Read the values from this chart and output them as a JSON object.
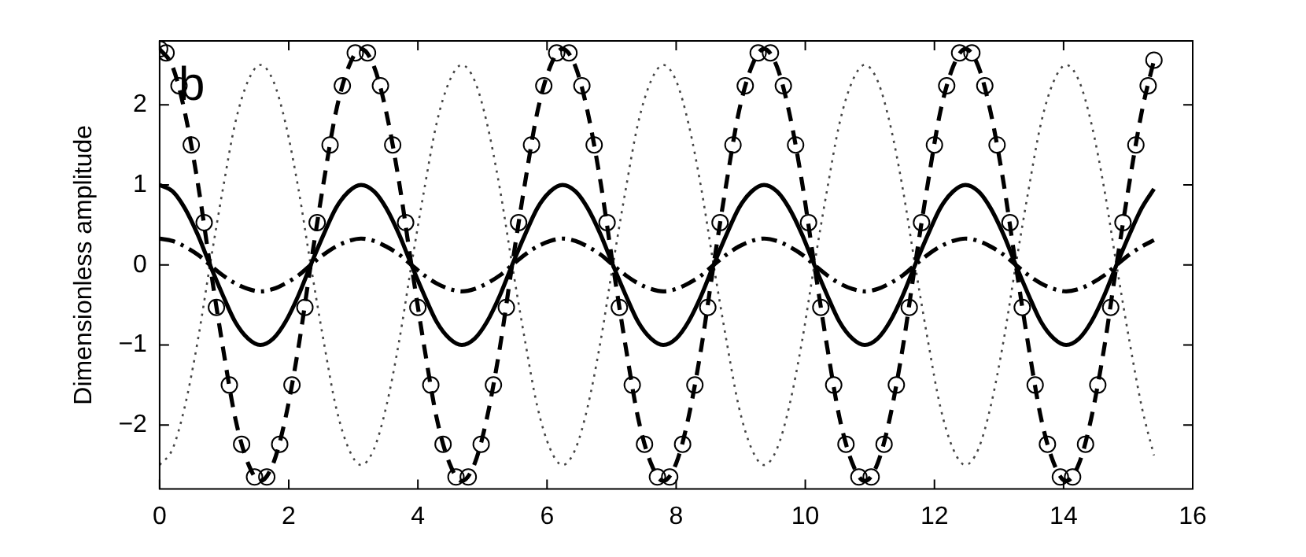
{
  "chart_data": {
    "type": "line",
    "ylabel": "Dimensionless amplitude",
    "annotations": [
      "b"
    ],
    "xlim": [
      0,
      16
    ],
    "xticks": [
      0,
      2,
      4,
      6,
      8,
      10,
      12,
      14,
      16
    ],
    "ylim": [
      -2.8,
      2.8
    ],
    "yticks": [
      -2,
      -1,
      0,
      1,
      2
    ],
    "x": [
      0,
      0.2,
      0.39,
      0.59,
      0.78,
      0.98,
      1.17,
      1.37,
      1.56,
      1.76,
      1.95,
      2.15,
      2.34,
      2.54,
      2.73,
      2.93,
      3.12,
      3.32,
      3.51,
      3.71,
      3.9,
      4.1,
      4.29,
      4.49,
      4.68,
      4.88,
      5.07,
      5.27,
      5.46,
      5.66,
      5.85,
      6.05,
      6.24,
      6.44,
      6.63,
      6.83,
      7.02,
      7.22,
      7.41,
      7.61,
      7.8,
      8,
      8.19,
      8.39,
      8.58,
      8.78,
      8.97,
      9.17,
      9.36,
      9.56,
      9.75,
      9.95,
      10.14,
      10.34,
      10.53,
      10.73,
      10.92,
      11.12,
      11.31,
      11.51,
      11.7,
      11.9,
      12.09,
      12.29,
      12.48,
      12.68,
      12.87,
      13.07,
      13.26,
      13.46,
      13.65,
      13.85,
      14.04,
      14.24,
      14.43,
      14.63,
      14.82,
      15.02,
      15.21,
      15.4
    ],
    "series": [
      {
        "color": "#000000",
        "line_style": "solid",
        "values": [
          1,
          0.92,
          0.71,
          0.38,
          0,
          -0.38,
          -0.71,
          -0.92,
          -1,
          -0.92,
          -0.71,
          -0.38,
          0,
          0.38,
          0.71,
          0.92,
          1,
          0.92,
          0.71,
          0.38,
          0,
          -0.38,
          -0.71,
          -0.92,
          -1,
          -0.92,
          -0.71,
          -0.38,
          0,
          0.38,
          0.71,
          0.92,
          1,
          0.92,
          0.71,
          0.38,
          0,
          -0.38,
          -0.71,
          -0.92,
          -1,
          -0.92,
          -0.71,
          -0.38,
          0,
          0.38,
          0.71,
          0.92,
          1,
          0.92,
          0.71,
          0.38,
          0,
          -0.38,
          -0.71,
          -0.92,
          -1,
          -0.92,
          -0.71,
          -0.38,
          0,
          0.38,
          0.71,
          0.92,
          1,
          0.92,
          0.71,
          0.38,
          0,
          -0.38,
          -0.71,
          -0.92,
          -1,
          -0.92,
          -0.71,
          -0.38,
          0,
          0.38,
          0.71,
          0.95
        ]
      },
      {
        "color": "#000000",
        "line_style": "dashdot",
        "values": [
          0.33,
          0.3,
          0.23,
          0.13,
          0,
          -0.13,
          -0.23,
          -0.3,
          -0.33,
          -0.3,
          -0.23,
          -0.13,
          0,
          0.13,
          0.23,
          0.3,
          0.33,
          0.3,
          0.23,
          0.13,
          0,
          -0.13,
          -0.23,
          -0.3,
          -0.33,
          -0.3,
          -0.23,
          -0.13,
          0,
          0.13,
          0.23,
          0.3,
          0.33,
          0.3,
          0.23,
          0.13,
          0,
          -0.13,
          -0.23,
          -0.3,
          -0.33,
          -0.3,
          -0.23,
          -0.13,
          0,
          0.13,
          0.23,
          0.3,
          0.33,
          0.3,
          0.23,
          0.13,
          0,
          -0.13,
          -0.23,
          -0.3,
          -0.33,
          -0.3,
          -0.23,
          -0.13,
          0,
          0.13,
          0.23,
          0.3,
          0.33,
          0.3,
          0.23,
          0.13,
          0,
          -0.13,
          -0.23,
          -0.3,
          -0.33,
          -0.3,
          -0.23,
          -0.13,
          0,
          0.13,
          0.23,
          0.31
        ]
      },
      {
        "color": "#000000",
        "line_style": "dashed",
        "values": [
          2.7,
          2.48,
          1.91,
          1.03,
          0,
          -1.03,
          -1.91,
          -2.48,
          -2.7,
          -2.48,
          -1.91,
          -1.03,
          0,
          1.03,
          1.91,
          2.48,
          2.7,
          2.48,
          1.91,
          1.03,
          0,
          -1.03,
          -1.91,
          -2.48,
          -2.7,
          -2.48,
          -1.91,
          -1.03,
          0,
          1.03,
          1.91,
          2.48,
          2.7,
          2.48,
          1.91,
          1.03,
          0,
          -1.03,
          -1.91,
          -2.48,
          -2.7,
          -2.48,
          -1.91,
          -1.03,
          0,
          1.03,
          1.91,
          2.48,
          2.7,
          2.48,
          1.91,
          1.03,
          0,
          -1.03,
          -1.91,
          -2.48,
          -2.7,
          -2.48,
          -1.91,
          -1.03,
          0,
          1.03,
          1.91,
          2.48,
          2.7,
          2.48,
          1.91,
          1.03,
          0,
          -1.03,
          -1.91,
          -2.48,
          -2.7,
          -2.48,
          -1.91,
          -1.03,
          0,
          1.03,
          1.91,
          2.56
        ]
      },
      {
        "color": "#444444",
        "line_style": "dotted",
        "values": [
          -2.5,
          -2.3,
          -1.77,
          -0.95,
          0,
          0.95,
          1.77,
          2.3,
          2.5,
          2.3,
          1.77,
          0.95,
          0,
          -0.95,
          -1.77,
          -2.3,
          -2.5,
          -2.3,
          -1.77,
          -0.95,
          0,
          0.95,
          1.77,
          2.3,
          2.5,
          2.3,
          1.77,
          0.95,
          0,
          -0.95,
          -1.77,
          -2.3,
          -2.5,
          -2.3,
          -1.77,
          -0.95,
          0,
          0.95,
          1.77,
          2.3,
          2.5,
          2.3,
          1.77,
          0.95,
          0,
          -0.95,
          -1.77,
          -2.3,
          -2.5,
          -2.3,
          -1.77,
          -0.95,
          0,
          0.95,
          1.77,
          2.3,
          2.5,
          2.3,
          1.77,
          0.95,
          0,
          -0.95,
          -1.77,
          -2.3,
          -2.5,
          -2.3,
          -1.77,
          -0.95,
          0,
          0.95,
          1.77,
          2.3,
          2.5,
          2.3,
          1.77,
          0.95,
          0,
          -0.95,
          -1.77,
          -2.38
        ]
      },
      {
        "type": "scatter",
        "color": "#000000",
        "marker": "circle",
        "x": [
          0,
          0.1,
          0.3,
          0.49,
          0.69,
          0.88,
          1.08,
          1.27,
          1.47,
          1.66,
          1.86,
          2.05,
          2.25,
          2.44,
          2.64,
          2.83,
          3.03,
          3.22,
          3.42,
          3.61,
          3.81,
          4,
          4.2,
          4.39,
          4.59,
          4.78,
          4.98,
          5.17,
          5.37,
          5.56,
          5.76,
          5.95,
          6.15,
          6.34,
          6.54,
          6.73,
          6.93,
          7.12,
          7.32,
          7.51,
          7.71,
          7.9,
          8.1,
          8.29,
          8.49,
          8.68,
          8.88,
          9.07,
          9.27,
          9.46,
          9.66,
          9.85,
          10.05,
          10.24,
          10.44,
          10.63,
          10.83,
          11.02,
          11.22,
          11.41,
          11.61,
          11.8,
          12,
          12.19,
          12.39,
          12.58,
          12.78,
          12.97,
          13.17,
          13.36,
          13.56,
          13.75,
          13.95,
          14.14,
          14.34,
          14.53,
          14.73,
          14.92,
          15.12,
          15.31,
          15.4
        ],
        "values": [
          2.7,
          2.65,
          2.24,
          1.5,
          0.53,
          -0.53,
          -1.5,
          -2.24,
          -2.65,
          -2.65,
          -2.24,
          -1.5,
          -0.53,
          0.53,
          1.5,
          2.24,
          2.65,
          2.65,
          2.24,
          1.5,
          0.53,
          -0.53,
          -1.5,
          -2.24,
          -2.65,
          -2.65,
          -2.24,
          -1.5,
          -0.53,
          0.53,
          1.5,
          2.24,
          2.65,
          2.65,
          2.24,
          1.5,
          0.53,
          -0.53,
          -1.5,
          -2.24,
          -2.65,
          -2.65,
          -2.24,
          -1.5,
          -0.53,
          0.53,
          1.5,
          2.24,
          2.65,
          2.65,
          2.24,
          1.5,
          0.53,
          -0.53,
          -1.5,
          -2.24,
          -2.65,
          -2.65,
          -2.24,
          -1.5,
          -0.53,
          0.53,
          1.5,
          2.24,
          2.65,
          2.65,
          2.24,
          1.5,
          0.53,
          -0.53,
          -1.5,
          -2.24,
          -2.65,
          -2.65,
          -2.24,
          -1.5,
          -0.53,
          0.53,
          1.5,
          2.24,
          2.56
        ]
      }
    ]
  }
}
